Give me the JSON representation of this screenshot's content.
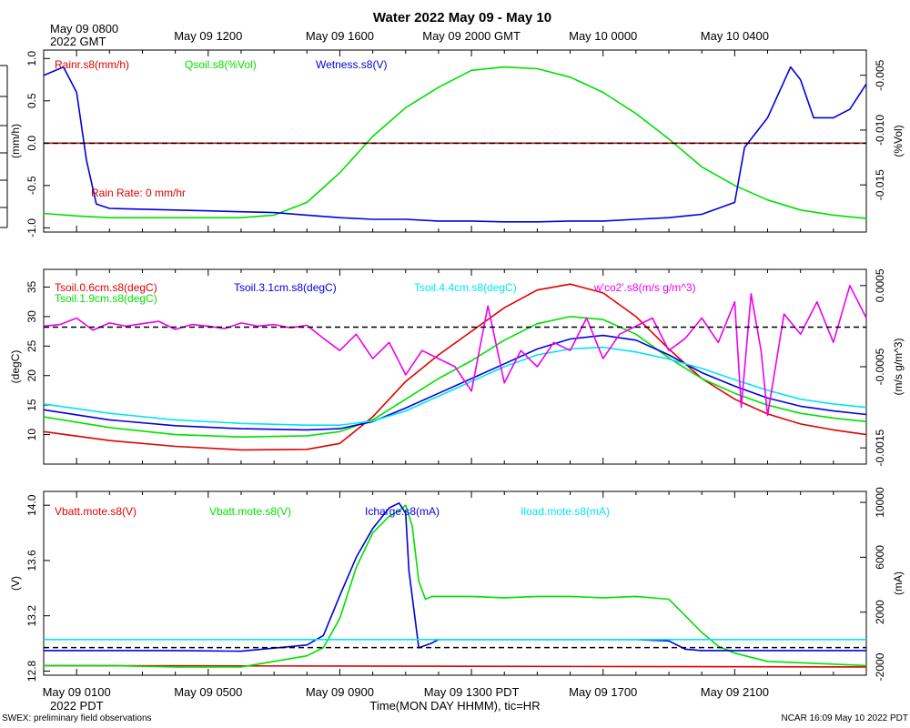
{
  "page": {
    "title": "Water 2022 May 09 - May 10",
    "top_time_labels": [
      "May 09 0800",
      "May 09 1200",
      "May 09 1600",
      "May 09 2000 GMT",
      "May 10 0000",
      "May 10 0400"
    ],
    "top_left_sub": "2022 GMT",
    "bottom_time_labels": [
      "May 09 0100",
      "May 09 0500",
      "May 09 0900",
      "May 09 1300 PDT",
      "May 09 1700",
      "May 09 2100"
    ],
    "bottom_left_sub": "2022 PDT",
    "xlabel": "Time(MON DAY HHMM), tic=HR",
    "footer_left": "SWEX: preliminary field observations",
    "footer_right": "NCAR 16:09 May 10 2022 PDT"
  },
  "chart_data": [
    {
      "type": "line",
      "id": "water",
      "ylabel_left": "(mm/h)",
      "ylabel_right": "(%Vol)",
      "ylim_left": [
        -1.05,
        1.1
      ],
      "ylim_right": [
        -0.0193,
        -0.0027
      ],
      "yticks_left": [
        "1.0",
        "0.5",
        "0.0",
        "-0.5",
        "-1.0"
      ],
      "yticks_right": [
        "-0.005",
        "-0.010",
        "-0.015"
      ],
      "reference_line": {
        "left_value": 0.0,
        "style": "dashed"
      },
      "annotation": {
        "text": "Rain Rate: 0 mm/hr",
        "color": "#e00000"
      },
      "series": [
        {
          "name": "Rainr.s8(mm/h)",
          "color": "#e00000",
          "axis": "left",
          "x": [
            0,
            25
          ],
          "y": [
            0.0,
            0.0
          ]
        },
        {
          "name": "Qsoil.s8(%Vol)",
          "color": "#00e000",
          "axis": "left",
          "x": [
            0,
            1,
            2,
            3,
            4,
            5,
            6,
            7,
            8,
            9,
            10,
            11,
            12,
            13,
            14,
            15,
            16,
            17,
            18,
            19,
            20,
            21,
            22,
            23,
            24,
            25
          ],
          "y": [
            -0.83,
            -0.86,
            -0.88,
            -0.88,
            -0.88,
            -0.88,
            -0.88,
            -0.85,
            -0.7,
            -0.35,
            0.08,
            0.42,
            0.66,
            0.86,
            0.9,
            0.88,
            0.78,
            0.6,
            0.35,
            0.05,
            -0.28,
            -0.5,
            -0.67,
            -0.79,
            -0.85,
            -0.89
          ]
        },
        {
          "name": "Wetness.s8(V)",
          "color": "#0000e0",
          "axis": "left",
          "x": [
            0,
            0.6,
            1,
            1.3,
            1.6,
            2,
            3,
            4,
            5,
            6,
            7,
            8,
            9,
            10,
            11,
            12,
            13,
            14,
            15,
            16,
            17,
            18,
            19,
            20,
            21,
            21.3,
            22,
            22.7,
            23,
            23.4,
            24,
            24.5,
            25
          ],
          "y": [
            0.8,
            0.9,
            0.6,
            -0.2,
            -0.72,
            -0.77,
            -0.78,
            -0.79,
            -0.8,
            -0.81,
            -0.82,
            -0.85,
            -0.88,
            -0.9,
            -0.9,
            -0.92,
            -0.92,
            -0.93,
            -0.93,
            -0.92,
            -0.92,
            -0.9,
            -0.88,
            -0.84,
            -0.7,
            -0.05,
            0.3,
            0.9,
            0.75,
            0.3,
            0.3,
            0.4,
            0.7
          ]
        }
      ]
    },
    {
      "type": "line",
      "id": "soil",
      "ylabel_left": "(degC)",
      "ylabel_right": "(m/s g/m^3)",
      "ylim_left": [
        5,
        38
      ],
      "ylim_right": [
        -0.0017,
        0.0007
      ],
      "yticks_left": [
        "35",
        "30",
        "25",
        "20",
        "15",
        "10"
      ],
      "yticks_right": [
        "0.0005",
        "-0.0005",
        "-0.0015"
      ],
      "reference_line": {
        "left_value": 28.2,
        "style": "dashed"
      },
      "series": [
        {
          "name": "Tsoil.0.6cm.s8(degC)",
          "color": "#e00000",
          "axis": "left",
          "x": [
            0,
            2,
            4,
            6,
            8,
            9,
            10,
            11,
            12,
            13,
            14,
            15,
            16,
            17,
            18,
            19,
            20,
            21,
            22,
            23,
            24,
            25
          ],
          "y": [
            10.5,
            9,
            8,
            7.4,
            7.5,
            8.5,
            13,
            19,
            23.5,
            27.5,
            31.5,
            34.5,
            35.5,
            34,
            30,
            24.5,
            19.5,
            16,
            13.5,
            11.8,
            10.8,
            10
          ]
        },
        {
          "name": "Tsoil.1.9cm.s8(degC)",
          "color": "#00e000",
          "axis": "left",
          "x": [
            0,
            2,
            4,
            6,
            8,
            9,
            10,
            11,
            12,
            13,
            14,
            15,
            16,
            17,
            18,
            19,
            20,
            21,
            22,
            23,
            24,
            25
          ],
          "y": [
            13,
            11.2,
            10,
            9.6,
            9.8,
            10.5,
            12.5,
            16,
            19.5,
            22.5,
            26,
            28.8,
            30,
            29.5,
            27,
            23,
            19.5,
            17,
            15,
            13.6,
            12.8,
            12.2
          ]
        },
        {
          "name": "Tsoil.3.1cm.s8(degC)",
          "color": "#0000e0",
          "axis": "left",
          "x": [
            0,
            2,
            4,
            6,
            8,
            9,
            10,
            11,
            12,
            13,
            14,
            15,
            16,
            17,
            18,
            19,
            20,
            21,
            22,
            23,
            24,
            25
          ],
          "y": [
            14.2,
            12.5,
            11.5,
            11,
            10.8,
            11,
            12.2,
            14.5,
            17,
            19.5,
            22,
            24.5,
            26.2,
            26.8,
            26,
            23.5,
            20.5,
            18.2,
            16.2,
            14.8,
            14,
            13.4
          ]
        },
        {
          "name": "Tsoil.4.4cm.s8(degC)",
          "color": "#00e5ee",
          "axis": "left",
          "x": [
            0,
            2,
            4,
            6,
            8,
            9,
            10,
            11,
            12,
            13,
            14,
            15,
            16,
            17,
            18,
            19,
            20,
            21,
            22,
            23,
            24,
            25
          ],
          "y": [
            15.2,
            13.6,
            12.5,
            11.9,
            11.6,
            11.6,
            12.3,
            14,
            16.5,
            19,
            21.5,
            23.5,
            24.5,
            24.8,
            24,
            22.8,
            21.2,
            19.3,
            17.5,
            16,
            15.2,
            14.6
          ]
        },
        {
          "name": "w'co2'.s8(m/s g/m^3)",
          "color": "#ee00ee",
          "axis": "right",
          "x": [
            0,
            0.5,
            1,
            1.5,
            2,
            2.5,
            3,
            3.5,
            4,
            4.5,
            5,
            5.5,
            6,
            6.5,
            7,
            7.5,
            8,
            8.5,
            9,
            9.5,
            10,
            10.5,
            11,
            11.5,
            12,
            12.5,
            13,
            13.5,
            14,
            14.5,
            15,
            15.5,
            16,
            16.5,
            17,
            17.5,
            18,
            18.5,
            19,
            19.5,
            20,
            20.5,
            21,
            21.2,
            21.5,
            21.8,
            22,
            22.5,
            23,
            23.5,
            24,
            24.5,
            25
          ],
          "y": [
            0.0,
            2e-05,
            0.0001,
            -5e-05,
            4e-05,
            0.0,
            3e-05,
            6e-05,
            -4e-05,
            2e-05,
            0.0,
            -3e-05,
            4e-05,
            0.0,
            2e-05,
            -2e-05,
            1e-05,
            -0.00015,
            -0.0003,
            -0.0001,
            -0.0004,
            -0.0002,
            -0.0006,
            -0.0003,
            -0.0004,
            -0.0005,
            -0.0008,
            0.00025,
            -0.0007,
            -0.0003,
            -0.0005,
            -0.0002,
            -0.0003,
            0.0001,
            -0.0004,
            -0.0001,
            0.0,
            0.0001,
            -0.0003,
            -0.00015,
            0.0001,
            -0.0002,
            0.0003,
            -0.001,
            0.0004,
            -0.0003,
            -0.0011,
            0.00015,
            -0.0001,
            0.0003,
            -0.0002,
            0.0005,
            0.0001
          ]
        }
      ]
    },
    {
      "type": "line",
      "id": "power",
      "ylabel_left": "(V)",
      "ylabel_right": "(mA)",
      "ylim_left": [
        12.77,
        14.1
      ],
      "ylim_right": [
        -2600,
        10800
      ],
      "yticks_left": [
        "14.0",
        "13.6",
        "13.2",
        "12.8"
      ],
      "yticks_right": [
        "10000",
        "6000",
        "2000",
        "-2000"
      ],
      "reference_line": {
        "left_value": 12.97,
        "style": "dashed"
      },
      "series": [
        {
          "name": "Vbatt.mote.s8(V)",
          "color": "#e00000",
          "axis": "left",
          "x": [
            0,
            25
          ],
          "y": [
            12.84,
            12.83
          ]
        },
        {
          "name": "Vbatt.mote.s8(V)",
          "color": "#00e000",
          "axis": "left",
          "x": [
            0,
            2,
            4,
            6,
            7,
            8,
            8.5,
            9,
            9.5,
            10,
            10.5,
            10.8,
            11,
            11.2,
            11.4,
            11.6,
            11.8,
            12,
            12.5,
            13,
            14,
            15,
            16,
            17,
            18,
            19,
            19.5,
            20,
            20.5,
            21,
            21.5,
            22,
            23,
            24,
            25
          ],
          "y": [
            12.84,
            12.84,
            12.83,
            12.83,
            12.87,
            12.91,
            12.97,
            13.18,
            13.55,
            13.8,
            13.92,
            13.96,
            14.0,
            13.85,
            13.45,
            13.32,
            13.34,
            13.34,
            13.34,
            13.34,
            13.33,
            13.34,
            13.34,
            13.33,
            13.34,
            13.32,
            13.2,
            13.08,
            12.98,
            12.93,
            12.9,
            12.87,
            12.86,
            12.85,
            12.84
          ]
        },
        {
          "name": "Icharge.s8(mA)",
          "color": "#0000e0",
          "axis": "right",
          "x": [
            0,
            4,
            6,
            8,
            8.5,
            9,
            9.5,
            10,
            10.5,
            10.8,
            11,
            11.1,
            11.4,
            11.8,
            12,
            13,
            14,
            15,
            16,
            17,
            18,
            19,
            19.5,
            20,
            22,
            25
          ],
          "y": [
            -800,
            -800,
            -850,
            -400,
            300,
            3200,
            6000,
            8100,
            9600,
            9950,
            9200,
            5000,
            -600,
            -250,
            0,
            0,
            0,
            0,
            0,
            0,
            0,
            -100,
            -700,
            -800,
            -800,
            -800
          ]
        },
        {
          "name": "Iload.mote.s8(mA)",
          "color": "#00e5ee",
          "axis": "right",
          "x": [
            0,
            25
          ],
          "y": [
            0,
            0
          ]
        }
      ]
    }
  ]
}
